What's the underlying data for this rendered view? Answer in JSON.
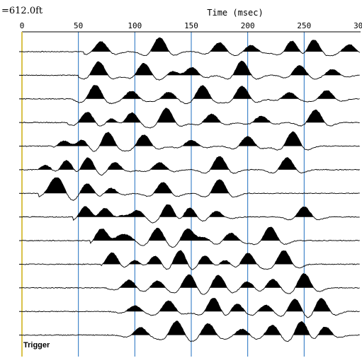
{
  "header": {
    "depth_label": "=612.0ft"
  },
  "colors": {
    "gridline": "#1f6fc0",
    "trace": "#000000",
    "fill": "#000000",
    "left_axis": "#d9c24a",
    "frame": "#000000"
  },
  "chart_data": {
    "type": "seismic-waveform",
    "title": "",
    "xlabel": "Time (msec)",
    "ylabel": "",
    "xlim": [
      0,
      300
    ],
    "x_ticks": [
      0,
      50,
      100,
      150,
      200,
      250,
      300
    ],
    "x_tick_labels": [
      "0",
      "50",
      "100",
      "150",
      "200",
      "250",
      "300"
    ],
    "vertical_gridlines_ms": [
      50,
      100,
      150,
      200,
      250
    ],
    "trace_count": 13,
    "trigger_label": "Trigger",
    "traces": [
      {
        "index": 1,
        "onset_ms": 55,
        "arrivals_ms": [
          70,
          122,
          175,
          203,
          240,
          258,
          290
        ]
      },
      {
        "index": 2,
        "onset_ms": 50,
        "arrivals_ms": [
          68,
          108,
          135,
          150,
          195,
          246,
          275
        ]
      },
      {
        "index": 3,
        "onset_ms": 45,
        "arrivals_ms": [
          65,
          97,
          130,
          160,
          195,
          237,
          270
        ]
      },
      {
        "index": 4,
        "onset_ms": 40,
        "arrivals_ms": [
          58,
          80,
          97,
          128,
          168,
          212,
          260
        ]
      },
      {
        "index": 5,
        "onset_ms": 28,
        "arrivals_ms": [
          38,
          53,
          76,
          108,
          150,
          200,
          240
        ]
      },
      {
        "index": 6,
        "onset_ms": 15,
        "arrivals_ms": [
          22,
          40,
          58,
          82,
          122,
          175,
          235
        ]
      },
      {
        "index": 7,
        "onset_ms": 15,
        "arrivals_ms": [
          25,
          33,
          58,
          78,
          125,
          175
        ]
      },
      {
        "index": 8,
        "onset_ms": 45,
        "arrivals_ms": [
          57,
          73,
          88,
          102,
          130,
          148,
          172,
          250
        ]
      },
      {
        "index": 9,
        "onset_ms": 60,
        "arrivals_ms": [
          71,
          85,
          95,
          120,
          147,
          160,
          185,
          220
        ]
      },
      {
        "index": 10,
        "onset_ms": 70,
        "arrivals_ms": [
          80,
          100,
          118,
          140,
          162,
          180,
          200,
          232
        ]
      },
      {
        "index": 11,
        "onset_ms": 75,
        "arrivals_ms": [
          95,
          120,
          148,
          174,
          200,
          222,
          250
        ]
      },
      {
        "index": 12,
        "onset_ms": 65,
        "arrivals_ms": [
          100,
          130,
          170,
          190,
          216,
          242,
          265
        ]
      },
      {
        "index": 13,
        "onset_ms": 30,
        "arrivals_ms": [
          105,
          137,
          165,
          195,
          222,
          248,
          268
        ]
      }
    ]
  }
}
